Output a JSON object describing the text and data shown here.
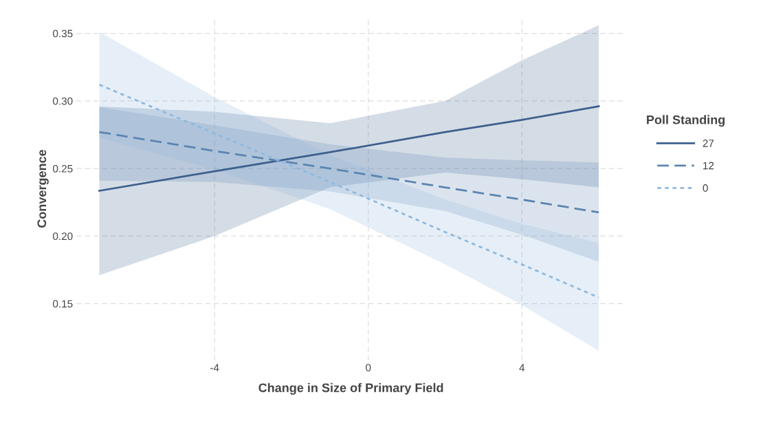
{
  "chart_data": {
    "type": "line",
    "xlabel": "Change in Size of Primary Field",
    "ylabel": "Convergence",
    "legend_title": "Poll Standing",
    "xlim": [
      -7.6,
      6.7
    ],
    "xticks": [
      -4,
      0,
      4
    ],
    "ylim": [
      0.108,
      0.362
    ],
    "yticks": [
      0.15,
      {
        "value": 0.2,
        "label": "0.20"
      },
      0.25,
      {
        "value": 0.3,
        "label": "0.30"
      },
      0.35
    ],
    "grid": true,
    "legend": "right",
    "series": [
      {
        "name": "27",
        "color": "#3d5f8c",
        "line_style": "solid",
        "x": [
          -7,
          -4,
          -1,
          2,
          4,
          6
        ],
        "values": [
          0.2335,
          0.248,
          0.262,
          0.277,
          0.286,
          0.296
        ],
        "lower": [
          0.171,
          0.2,
          0.236,
          0.247,
          0.242,
          0.236
        ],
        "upper": [
          0.296,
          0.292,
          0.2835,
          0.3,
          0.33,
          0.356
        ]
      },
      {
        "name": "12",
        "color": "#5b84b1",
        "line_style": "dashed",
        "x": [
          -7,
          -4,
          -1,
          2,
          4,
          6
        ],
        "values": [
          0.277,
          0.263,
          0.25,
          0.236,
          0.227,
          0.2175
        ],
        "lower": [
          0.241,
          0.24,
          0.233,
          0.2185,
          0.201,
          0.181
        ],
        "upper": [
          0.2955,
          0.282,
          0.268,
          0.258,
          0.256,
          0.2545
        ]
      },
      {
        "name": "0",
        "color": "#8fb8de",
        "line_style": "dotted",
        "x": [
          -7,
          -4,
          -1,
          2,
          4,
          6
        ],
        "values": [
          0.312,
          0.276,
          0.24,
          0.203,
          0.179,
          0.1545
        ],
        "lower": [
          0.273,
          0.249,
          0.22,
          0.179,
          0.149,
          0.115
        ],
        "upper": [
          0.351,
          0.303,
          0.26,
          0.227,
          0.209,
          0.195
        ]
      }
    ]
  }
}
